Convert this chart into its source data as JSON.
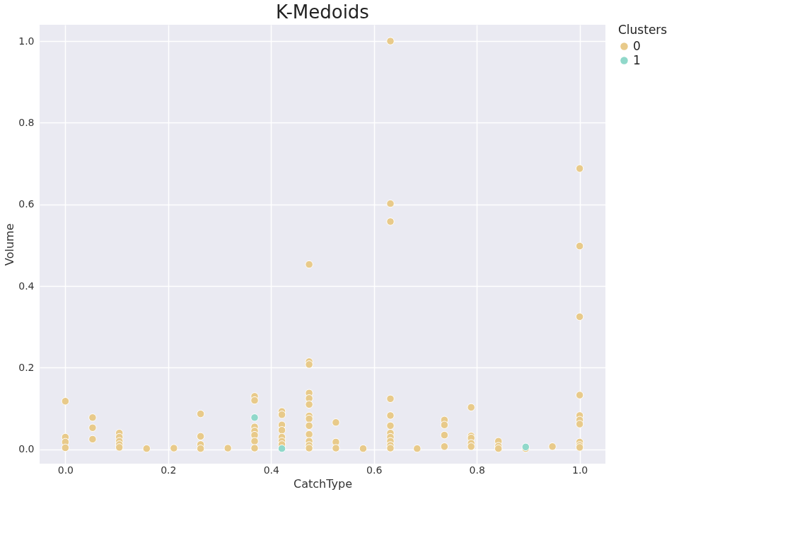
{
  "chart_data": {
    "type": "scatter",
    "title": "K-Medoids",
    "xlabel": "CatchType",
    "ylabel": "Volume",
    "legend_title": "Clusters",
    "legend": "top right",
    "grid": true,
    "marker": "circle",
    "xlim": [
      -0.05,
      1.05
    ],
    "ylim": [
      -0.035,
      1.04
    ],
    "xticks": [
      {
        "value": 0,
        "label": "0.0"
      },
      {
        "value": 0.2,
        "label": "0.2"
      },
      {
        "value": 0.4,
        "label": "0.4"
      },
      {
        "value": 0.6,
        "label": "0.6"
      },
      {
        "value": 0.8,
        "label": "0.8"
      },
      {
        "value": 1,
        "label": "1.0"
      }
    ],
    "yticks": [
      {
        "value": 0,
        "label": "0.0"
      },
      {
        "value": 0.2,
        "label": "0.2"
      },
      {
        "value": 0.4,
        "label": "0.4"
      },
      {
        "value": 0.6,
        "label": "0.6"
      },
      {
        "value": 0.8,
        "label": "0.8"
      },
      {
        "value": 1,
        "label": "1.0"
      }
    ],
    "series": [
      {
        "name": "0",
        "color": "#e8ca8a",
        "x": [
          0,
          0,
          0,
          0,
          0.053,
          0.053,
          0.053,
          0.105,
          0.105,
          0.105,
          0.105,
          0.105,
          0.158,
          0.211,
          0.263,
          0.263,
          0.263,
          0.263,
          0.316,
          0.368,
          0.368,
          0.368,
          0.368,
          0.368,
          0.368,
          0.368,
          0.421,
          0.421,
          0.421,
          0.421,
          0.421,
          0.421,
          0.421,
          0.474,
          0.474,
          0.474,
          0.474,
          0.474,
          0.474,
          0.474,
          0.474,
          0.474,
          0.474,
          0.474,
          0.474,
          0.474,
          0.526,
          0.526,
          0.526,
          0.579,
          0.632,
          0.632,
          0.632,
          0.632,
          0.632,
          0.632,
          0.632,
          0.632,
          0.632,
          0.632,
          0.632,
          0.684,
          0.737,
          0.737,
          0.737,
          0.737,
          0.789,
          0.789,
          0.789,
          0.789,
          0.789,
          0.842,
          0.842,
          0.842,
          0.895,
          0.947,
          1,
          1,
          1,
          1,
          1,
          1,
          1,
          1,
          1,
          1
        ],
        "values": [
          0.118,
          0.03,
          0.018,
          0.004,
          0.078,
          0.053,
          0.025,
          0.04,
          0.03,
          0.02,
          0.012,
          0.005,
          0.002,
          0.003,
          0.087,
          0.032,
          0.012,
          0.002,
          0.003,
          0.13,
          0.12,
          0.055,
          0.045,
          0.035,
          0.02,
          0.003,
          0.093,
          0.085,
          0.06,
          0.047,
          0.03,
          0.02,
          0.012,
          0.453,
          0.215,
          0.208,
          0.138,
          0.125,
          0.11,
          0.082,
          0.075,
          0.058,
          0.037,
          0.02,
          0.01,
          0.003,
          0.066,
          0.018,
          0.003,
          0.002,
          1.0,
          0.602,
          0.558,
          0.124,
          0.083,
          0.058,
          0.04,
          0.03,
          0.02,
          0.01,
          0.003,
          0.002,
          0.072,
          0.06,
          0.035,
          0.007,
          0.103,
          0.033,
          0.028,
          0.015,
          0.007,
          0.02,
          0.008,
          0.002,
          0.002,
          0.007,
          0.688,
          0.498,
          0.325,
          0.133,
          0.083,
          0.072,
          0.062,
          0.018,
          0.01,
          0.005
        ]
      },
      {
        "name": "1",
        "color": "#90d8ca",
        "x": [
          0.368,
          0.421,
          0.895
        ],
        "values": [
          0.078,
          0.002,
          0.006
        ]
      }
    ]
  }
}
